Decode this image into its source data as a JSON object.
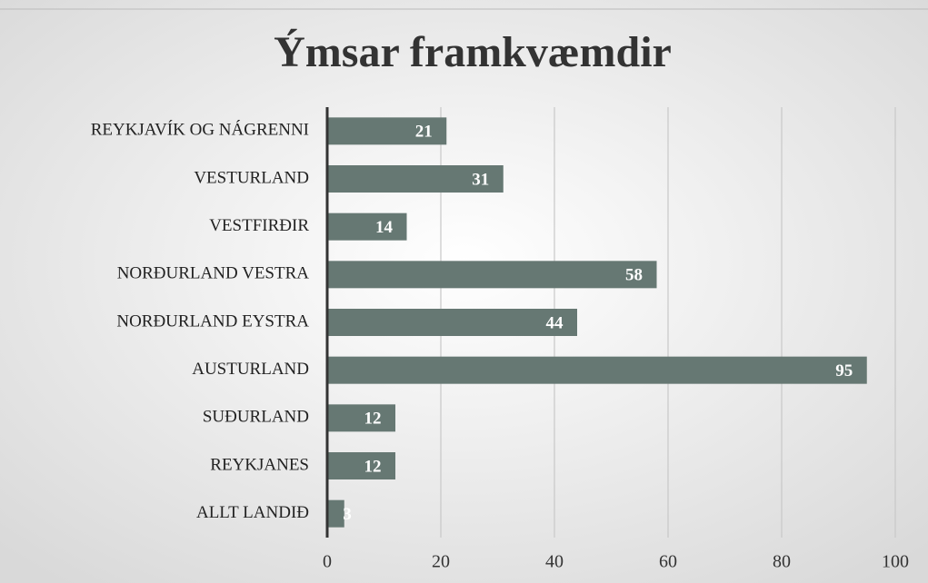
{
  "chart_data": {
    "type": "bar",
    "orientation": "horizontal",
    "title": "Ýmsar framkvæmdir",
    "categories": [
      "REYKJAVÍK OG NÁGRENNI",
      "VESTURLAND",
      "VESTFIRÐIR",
      "NORÐURLAND VESTRA",
      "NORÐURLAND EYSTRA",
      "AUSTURLAND",
      "SUÐURLAND",
      "REYKJANES",
      "ALLT LANDIÐ"
    ],
    "values": [
      21,
      31,
      14,
      58,
      44,
      95,
      12,
      12,
      3
    ],
    "color": "#667873",
    "xlim": [
      0,
      100
    ],
    "xticks": [
      0,
      20,
      40,
      60,
      80,
      100
    ],
    "grid": true
  }
}
